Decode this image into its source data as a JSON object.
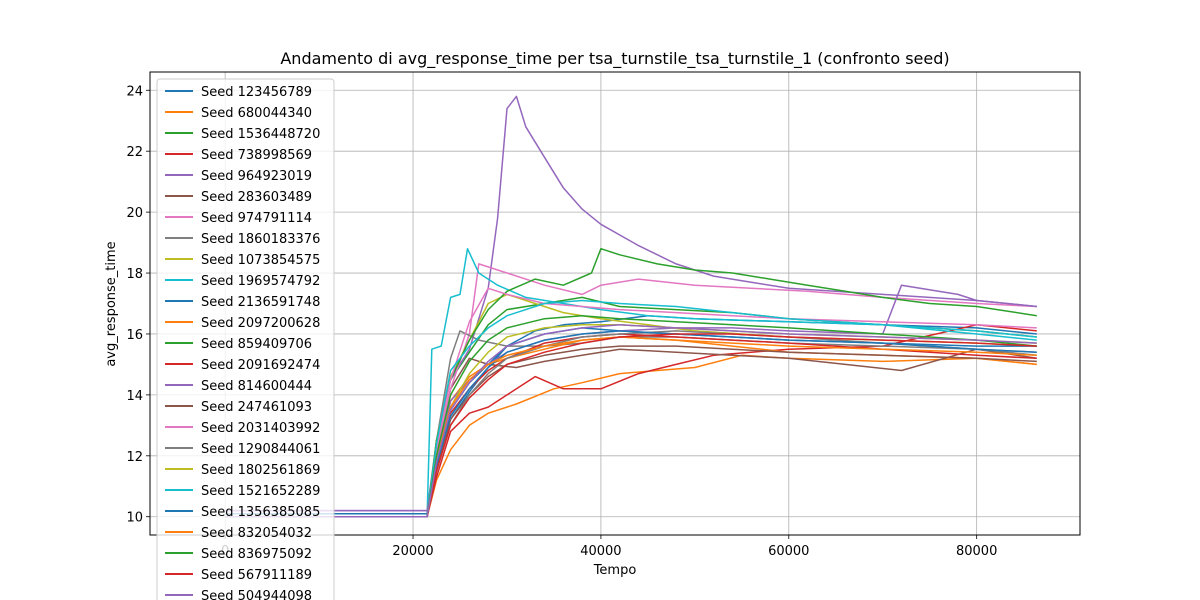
{
  "chart_data": {
    "type": "line",
    "title": "Andamento di avg_response_time per tsa_turnstile_tsa_turnstile_1 (confronto seed)",
    "xlabel": "Tempo",
    "ylabel": "avg_response_time",
    "xlim": [
      -8000,
      91000
    ],
    "ylim": [
      9.4,
      24.6
    ],
    "xticks": [
      0,
      20000,
      40000,
      60000,
      80000
    ],
    "xtick_labels": [
      "0",
      "20000",
      "40000",
      "60000",
      "80000"
    ],
    "yticks": [
      10,
      12,
      14,
      16,
      18,
      20,
      22,
      24
    ],
    "ytick_labels": [
      "10",
      "12",
      "14",
      "16",
      "18",
      "20",
      "22",
      "24"
    ],
    "grid": true,
    "legend_position": "upper-left",
    "series": [
      {
        "name": "Seed 123456789",
        "color": "#1f77b4",
        "x": [
          0,
          21500,
          22500,
          24000,
          26000,
          28000,
          30000,
          33000,
          36000,
          40000,
          45000,
          50000,
          60000,
          70000,
          80000,
          86400
        ],
        "y": [
          10.1,
          10.1,
          11.5,
          13.2,
          14.1,
          14.9,
          15.6,
          16.1,
          16.3,
          16.4,
          16.6,
          16.5,
          16.4,
          16.3,
          16.2,
          16.0
        ]
      },
      {
        "name": "Seed 680044340",
        "color": "#ff7f0e",
        "x": [
          0,
          21500,
          22500,
          24000,
          26000,
          28000,
          31000,
          35000,
          38000,
          42000,
          46000,
          50000,
          55000,
          60000,
          70000,
          80000,
          86400
        ],
        "y": [
          10.0,
          10.0,
          11.2,
          12.2,
          13.0,
          13.4,
          13.7,
          14.2,
          14.4,
          14.7,
          14.8,
          14.9,
          15.3,
          15.2,
          15.1,
          15.2,
          15.0
        ]
      },
      {
        "name": "Seed 1536448720",
        "color": "#2ca02c",
        "x": [
          0,
          21500,
          22500,
          24000,
          26000,
          28000,
          30000,
          34000,
          38000,
          42000,
          48000,
          54000,
          60000,
          70000,
          80000,
          86400
        ],
        "y": [
          10.0,
          10.0,
          12.5,
          14.5,
          15.4,
          16.3,
          16.8,
          17.0,
          17.2,
          16.9,
          16.8,
          16.7,
          16.5,
          16.3,
          16.1,
          15.9
        ]
      },
      {
        "name": "Seed 738998569",
        "color": "#d62728",
        "x": [
          0,
          21500,
          22500,
          24000,
          26000,
          28000,
          30000,
          33000,
          36000,
          40000,
          44000,
          48000,
          52000,
          56000,
          60000,
          70000,
          80000,
          86400
        ],
        "y": [
          10.0,
          10.0,
          11.3,
          12.8,
          13.4,
          13.6,
          14.0,
          14.6,
          14.2,
          14.2,
          14.7,
          15.0,
          15.3,
          15.4,
          15.5,
          15.6,
          16.3,
          16.1
        ]
      },
      {
        "name": "Seed 964923019",
        "color": "#9467bd",
        "x": [
          0,
          21500,
          22500,
          24000,
          26000,
          28000,
          29000,
          30000,
          31000,
          32000,
          34000,
          36000,
          38000,
          40000,
          44000,
          48000,
          52000,
          56000,
          60000,
          70000,
          80000,
          86400
        ],
        "y": [
          10.2,
          10.2,
          12.5,
          14.5,
          15.5,
          17.5,
          19.8,
          23.4,
          23.8,
          22.8,
          21.8,
          20.8,
          20.1,
          19.6,
          18.9,
          18.3,
          17.9,
          17.7,
          17.5,
          17.3,
          17.1,
          16.9
        ]
      },
      {
        "name": "Seed 283603489",
        "color": "#8c564b",
        "x": [
          0,
          21500,
          22500,
          24000,
          26000,
          28000,
          31000,
          34000,
          38000,
          42000,
          48000,
          54000,
          60000,
          66000,
          72000,
          80000,
          86400
        ],
        "y": [
          10.0,
          10.0,
          12.0,
          14.2,
          15.2,
          15.0,
          14.9,
          15.1,
          15.3,
          15.5,
          15.4,
          15.3,
          15.2,
          15.0,
          14.8,
          15.5,
          15.2
        ]
      },
      {
        "name": "Seed 974791114",
        "color": "#e377c2",
        "x": [
          0,
          21500,
          22500,
          24000,
          26000,
          27000,
          30000,
          34000,
          38000,
          40000,
          44000,
          50000,
          56000,
          62000,
          70000,
          80000,
          86400
        ],
        "y": [
          10.0,
          10.0,
          12.0,
          14.2,
          16.0,
          18.3,
          18.0,
          17.6,
          17.3,
          17.6,
          17.8,
          17.6,
          17.5,
          17.4,
          17.2,
          17.0,
          16.9
        ]
      },
      {
        "name": "Seed 1860183376",
        "color": "#7f7f7f",
        "x": [
          0,
          21500,
          22500,
          24000,
          25000,
          27000,
          30000,
          34000,
          38000,
          42000,
          48000,
          54000,
          60000,
          70000,
          80000,
          86400
        ],
        "y": [
          10.0,
          10.0,
          12.5,
          15.2,
          16.1,
          15.8,
          15.6,
          15.6,
          15.7,
          15.9,
          15.9,
          15.8,
          15.7,
          15.6,
          15.5,
          15.4
        ]
      },
      {
        "name": "Seed 1073854575",
        "color": "#bcbd22",
        "x": [
          0,
          21500,
          22500,
          24000,
          26000,
          28000,
          30000,
          33000,
          36000,
          40000,
          45000,
          50000,
          60000,
          70000,
          80000,
          86400
        ],
        "y": [
          10.0,
          10.0,
          12.5,
          14.6,
          15.8,
          17.0,
          17.3,
          17.0,
          16.7,
          16.5,
          16.3,
          16.1,
          15.9,
          15.8,
          15.7,
          15.6
        ]
      },
      {
        "name": "Seed 1969574792",
        "color": "#17becf",
        "x": [
          0,
          21500,
          22000,
          23000,
          24000,
          25000,
          25800,
          27000,
          29000,
          32000,
          36000,
          40000,
          45000,
          50000,
          60000,
          70000,
          80000,
          86400
        ],
        "y": [
          10.0,
          10.0,
          15.5,
          15.6,
          17.2,
          17.3,
          18.8,
          18.0,
          17.6,
          17.2,
          17.0,
          16.8,
          16.6,
          16.5,
          16.4,
          16.3,
          16.0,
          15.8
        ]
      },
      {
        "name": "Seed 2136591748",
        "color": "#1f77b4",
        "x": [
          0,
          21500,
          22500,
          24000,
          26000,
          28000,
          30000,
          34000,
          38000,
          42000,
          48000,
          54000,
          60000,
          70000,
          80000,
          86400
        ],
        "y": [
          10.1,
          10.1,
          11.8,
          13.5,
          14.4,
          15.0,
          15.6,
          16.0,
          16.2,
          16.1,
          16.0,
          15.9,
          15.8,
          15.7,
          15.6,
          15.6
        ]
      },
      {
        "name": "Seed 2097200628",
        "color": "#ff7f0e",
        "x": [
          0,
          21500,
          22500,
          24000,
          26000,
          28000,
          30000,
          34000,
          38000,
          42000,
          48000,
          54000,
          60000,
          70000,
          80000,
          86400
        ],
        "y": [
          10.0,
          10.0,
          12.0,
          13.8,
          14.6,
          15.0,
          15.2,
          15.5,
          15.8,
          15.9,
          15.8,
          15.6,
          15.4,
          15.3,
          15.2,
          15.0
        ]
      },
      {
        "name": "Seed 859409706",
        "color": "#2ca02c",
        "x": [
          0,
          21500,
          22500,
          24000,
          26000,
          28000,
          30000,
          33000,
          36000,
          39000,
          40000,
          42000,
          46000,
          50000,
          54000,
          58000,
          62000,
          66000,
          70000,
          75000,
          80000,
          86400
        ],
        "y": [
          10.0,
          10.0,
          12.5,
          14.5,
          15.8,
          16.8,
          17.4,
          17.8,
          17.6,
          18.0,
          18.8,
          18.6,
          18.3,
          18.1,
          18.0,
          17.8,
          17.6,
          17.4,
          17.2,
          17.0,
          16.9,
          16.6
        ]
      },
      {
        "name": "Seed 2091692474",
        "color": "#d62728",
        "x": [
          0,
          21500,
          22500,
          24000,
          26000,
          28000,
          30000,
          34000,
          38000,
          42000,
          48000,
          54000,
          60000,
          70000,
          80000,
          86400
        ],
        "y": [
          10.0,
          10.0,
          11.8,
          13.4,
          14.2,
          14.8,
          15.2,
          15.7,
          15.9,
          16.0,
          15.9,
          15.8,
          15.7,
          15.5,
          15.3,
          15.2
        ]
      },
      {
        "name": "Seed 814600444",
        "color": "#9467bd",
        "x": [
          0,
          21500,
          22500,
          24000,
          26000,
          28000,
          30000,
          34000,
          38000,
          42000,
          48000,
          54000,
          60000,
          70000,
          72000,
          78000,
          80000,
          86400
        ],
        "y": [
          10.2,
          10.2,
          12.0,
          13.8,
          14.5,
          15.0,
          15.4,
          15.8,
          16.0,
          16.1,
          16.2,
          16.2,
          16.1,
          16.0,
          17.6,
          17.3,
          17.1,
          16.9
        ]
      },
      {
        "name": "Seed 247461093",
        "color": "#8c564b",
        "x": [
          0,
          21500,
          22500,
          24000,
          26000,
          28000,
          30000,
          34000,
          38000,
          42000,
          48000,
          54000,
          60000,
          70000,
          80000,
          86400
        ],
        "y": [
          10.0,
          10.0,
          11.6,
          13.2,
          14.0,
          14.6,
          15.0,
          15.3,
          15.5,
          15.6,
          15.6,
          15.5,
          15.4,
          15.3,
          15.2,
          15.1
        ]
      },
      {
        "name": "Seed 2031403992",
        "color": "#e377c2",
        "x": [
          0,
          21500,
          22500,
          24000,
          26000,
          28000,
          30000,
          34000,
          38000,
          42000,
          48000,
          54000,
          60000,
          70000,
          80000,
          86400
        ],
        "y": [
          10.0,
          10.0,
          12.2,
          14.5,
          16.4,
          17.5,
          17.3,
          17.0,
          16.9,
          16.8,
          16.7,
          16.6,
          16.5,
          16.4,
          16.3,
          16.2
        ]
      },
      {
        "name": "Seed 1290844061",
        "color": "#7f7f7f",
        "x": [
          0,
          21500,
          22500,
          24000,
          26000,
          28000,
          30000,
          34000,
          38000,
          42000,
          48000,
          54000,
          60000,
          70000,
          80000,
          86400
        ],
        "y": [
          10.0,
          10.0,
          11.5,
          13.0,
          14.0,
          14.7,
          15.2,
          15.6,
          15.9,
          16.0,
          16.1,
          16.0,
          15.9,
          15.7,
          15.5,
          15.3
        ]
      },
      {
        "name": "Seed 1802561869",
        "color": "#bcbd22",
        "x": [
          0,
          21500,
          22500,
          24000,
          26000,
          28000,
          30000,
          34000,
          38000,
          42000,
          48000,
          54000,
          60000,
          70000,
          80000,
          86400
        ],
        "y": [
          10.0,
          10.0,
          11.8,
          13.6,
          14.7,
          15.4,
          15.9,
          16.2,
          16.3,
          16.3,
          16.2,
          16.1,
          16.0,
          15.9,
          15.8,
          15.7
        ]
      },
      {
        "name": "Seed 1521652289",
        "color": "#17becf",
        "x": [
          0,
          21500,
          22500,
          24000,
          26000,
          28000,
          30000,
          34000,
          38000,
          42000,
          48000,
          54000,
          60000,
          70000,
          80000,
          86400
        ],
        "y": [
          10.0,
          10.0,
          12.4,
          14.8,
          15.6,
          16.2,
          16.6,
          17.0,
          17.1,
          17.0,
          16.9,
          16.7,
          16.5,
          16.3,
          16.1,
          15.9
        ]
      },
      {
        "name": "Seed 1356385085",
        "color": "#1f77b4",
        "x": [
          0,
          21500,
          22500,
          24000,
          26000,
          28000,
          30000,
          34000,
          38000,
          42000,
          48000,
          54000,
          60000,
          70000,
          80000,
          86400
        ],
        "y": [
          10.0,
          10.0,
          11.7,
          13.3,
          14.2,
          14.9,
          15.4,
          15.8,
          16.0,
          16.1,
          16.0,
          15.9,
          15.8,
          15.7,
          15.5,
          15.4
        ]
      },
      {
        "name": "Seed 832054032",
        "color": "#ff7f0e",
        "x": [
          0,
          21500,
          22500,
          24000,
          26000,
          28000,
          30000,
          34000,
          38000,
          42000,
          48000,
          54000,
          60000,
          70000,
          80000,
          86400
        ],
        "y": [
          10.0,
          10.0,
          11.9,
          13.6,
          14.5,
          15.0,
          15.3,
          15.6,
          15.8,
          15.9,
          15.8,
          15.7,
          15.6,
          15.5,
          15.4,
          15.3
        ]
      },
      {
        "name": "Seed 836975092",
        "color": "#2ca02c",
        "x": [
          0,
          21500,
          22500,
          24000,
          26000,
          28000,
          30000,
          34000,
          38000,
          42000,
          48000,
          54000,
          60000,
          70000,
          80000,
          86400
        ],
        "y": [
          10.0,
          10.0,
          12.0,
          14.0,
          15.1,
          15.8,
          16.2,
          16.5,
          16.6,
          16.5,
          16.4,
          16.3,
          16.2,
          16.0,
          15.8,
          15.6
        ]
      },
      {
        "name": "Seed 567911189",
        "color": "#d62728",
        "x": [
          0,
          21500,
          22500,
          24000,
          26000,
          28000,
          30000,
          34000,
          38000,
          42000,
          48000,
          54000,
          60000,
          70000,
          80000,
          86400
        ],
        "y": [
          10.0,
          10.0,
          11.5,
          13.0,
          13.9,
          14.5,
          15.0,
          15.4,
          15.7,
          15.9,
          16.0,
          16.0,
          15.9,
          15.8,
          15.7,
          15.6
        ]
      },
      {
        "name": "Seed 504944098",
        "color": "#9467bd",
        "x": [
          0,
          21500,
          22500,
          24000,
          26000,
          28000,
          30000,
          34000,
          38000,
          42000,
          48000,
          54000,
          60000,
          70000,
          80000,
          86400
        ],
        "y": [
          10.0,
          10.0,
          11.8,
          13.5,
          14.4,
          15.1,
          15.6,
          16.0,
          16.2,
          16.3,
          16.2,
          16.1,
          16.0,
          15.9,
          15.8,
          15.7
        ]
      }
    ]
  }
}
